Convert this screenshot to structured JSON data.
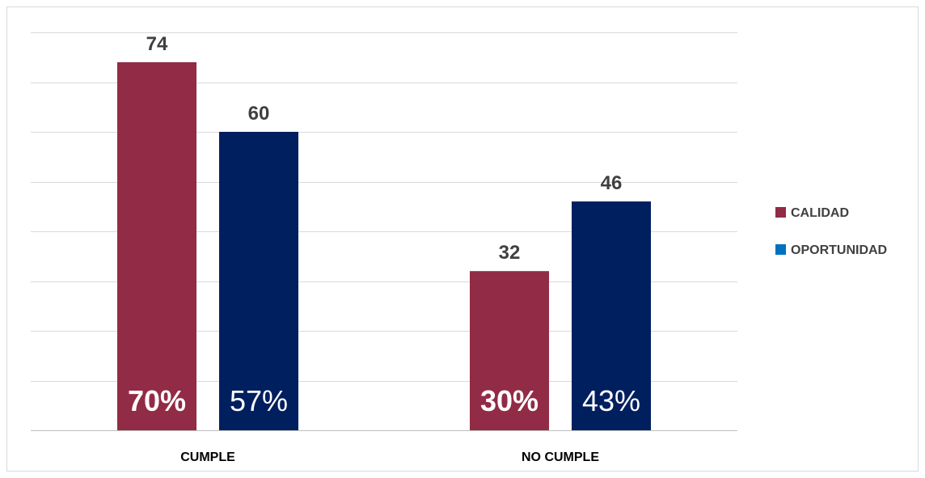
{
  "chart_data": {
    "type": "bar",
    "categories": [
      "CUMPLE",
      "NO CUMPLE"
    ],
    "series": [
      {
        "name": "CALIDAD",
        "values": [
          74,
          32
        ],
        "percent_labels": [
          "70%",
          "30%"
        ],
        "color": "#922b45"
      },
      {
        "name": "OPORTUNIDAD",
        "values": [
          60,
          46
        ],
        "percent_labels": [
          "57%",
          "43%"
        ],
        "color": "#001f5f"
      }
    ],
    "legend_swatch_colors": [
      "#922b45",
      "#0070c0"
    ],
    "ylim": [
      0,
      80
    ],
    "grid": true,
    "legend_position": "right",
    "title": "",
    "xlabel": "",
    "ylabel": ""
  }
}
